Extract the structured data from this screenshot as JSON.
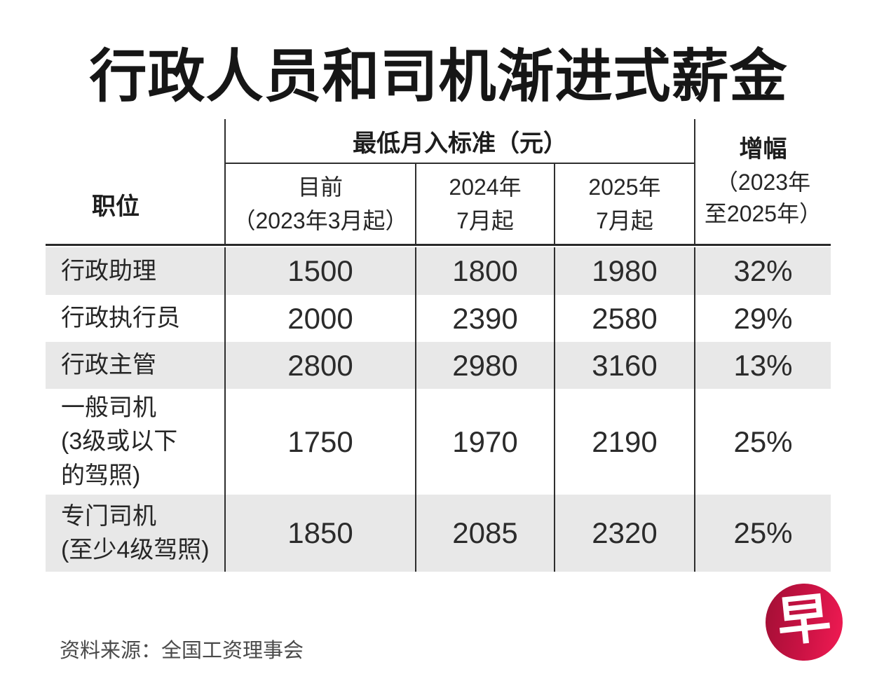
{
  "chart_data": {
    "type": "table",
    "title": "行政人员和司机渐进式薪金",
    "column_group_header": "最低月入标准（元）",
    "columns": {
      "position": "职位",
      "current": "目前\n（2023年3月起）",
      "jul2024": "2024年\n7月起",
      "jul2025": "2025年\n7月起",
      "increase_label": "增幅",
      "increase_range": "（2023年\n至2025年）"
    },
    "rows": [
      {
        "position": "行政助理",
        "current": 1500,
        "jul2024": 1800,
        "jul2025": 1980,
        "increase": "32%"
      },
      {
        "position": "行政执行员",
        "current": 2000,
        "jul2024": 2390,
        "jul2025": 2580,
        "increase": "29%"
      },
      {
        "position": "行政主管",
        "current": 2800,
        "jul2024": 2980,
        "jul2025": 3160,
        "increase": "13%"
      },
      {
        "position": "一般司机\n(3级或以下\n的驾照)",
        "current": 1750,
        "jul2024": 1970,
        "jul2025": 2190,
        "increase": "25%"
      },
      {
        "position": "专门司机\n(至少4级驾照)",
        "current": 1850,
        "jul2024": 2085,
        "jul2025": 2320,
        "increase": "25%"
      }
    ],
    "source": "资料来源：全国工资理事会",
    "layout": {
      "stripe_rows": [
        1,
        3,
        5
      ],
      "stripe_color": "#e8e8e8",
      "grid_line_color": "#2e2e2e"
    }
  },
  "logo": {
    "char": "早",
    "gradient_from": "#a50f36",
    "gradient_to": "#ee1a52"
  }
}
